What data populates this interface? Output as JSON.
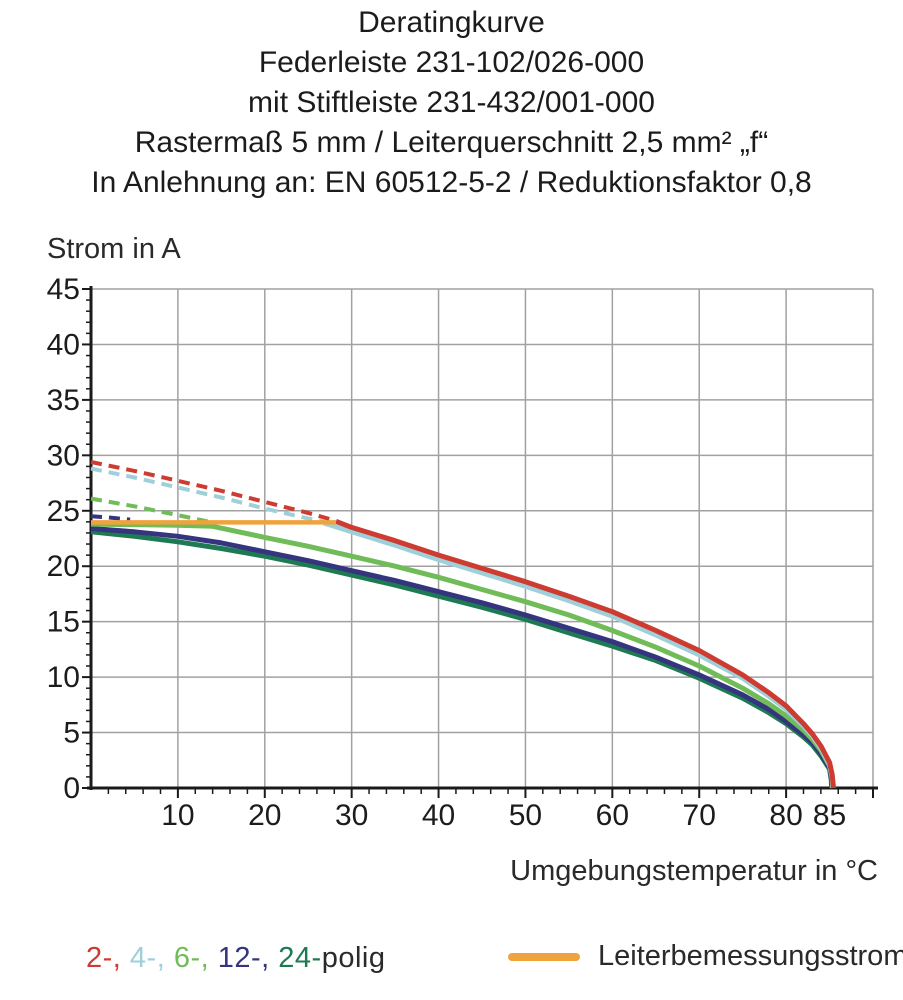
{
  "title": {
    "lines": [
      "Deratingkurve",
      "Federleiste 231-102/026-000",
      "mit Stiftleiste 231-432/001-000",
      "Rastermaß 5 mm / Leiterquerschnitt 2,5 mm² „f“",
      "In Anlehnung an: EN 60512-5-2 / Reduktionsfaktor 0,8"
    ]
  },
  "chart_data": {
    "type": "line",
    "ylabel": "Strom in A",
    "xlabel": "Umgebungstemperatur in °C",
    "x_unit": "°C",
    "y_unit": "A",
    "xlim": [
      0,
      90
    ],
    "ylim": [
      0,
      45
    ],
    "grid": true,
    "grid_color": "#a1a1a1",
    "axis_color": "#1a1a1a",
    "x_gridlines": [
      10,
      20,
      30,
      40,
      50,
      60,
      70,
      80,
      90
    ],
    "y_gridlines": [
      5,
      10,
      15,
      20,
      25,
      30,
      35,
      40,
      45
    ],
    "x_major_ticks": [
      10,
      20,
      30,
      40,
      50,
      60,
      70,
      80,
      85
    ],
    "y_major_ticks": [
      0,
      5,
      10,
      15,
      20,
      25,
      30,
      35,
      40,
      45
    ],
    "x_minor_step": 2,
    "y_minor_step": 1,
    "rated_conductor_current_A": 24,
    "series": [
      {
        "name": "2-polig",
        "color": "#ce3b30",
        "dashed_points": [
          [
            0,
            29.4
          ],
          [
            5,
            28.6
          ],
          [
            10,
            27.7
          ],
          [
            15,
            26.8
          ],
          [
            20,
            25.8
          ],
          [
            25,
            24.8
          ],
          [
            28.2,
            24.1
          ]
        ],
        "solid_points": [
          [
            28.2,
            24.05
          ],
          [
            30,
            23.5
          ],
          [
            35,
            22.3
          ],
          [
            40,
            21.0
          ],
          [
            45,
            19.8
          ],
          [
            50,
            18.6
          ],
          [
            55,
            17.3
          ],
          [
            60,
            15.9
          ],
          [
            65,
            14.2
          ],
          [
            70,
            12.4
          ],
          [
            75,
            10.2
          ],
          [
            78,
            8.6
          ],
          [
            80,
            7.4
          ],
          [
            82,
            5.8
          ],
          [
            83,
            4.9
          ],
          [
            84,
            3.8
          ],
          [
            85,
            2.3
          ],
          [
            85.3,
            1.2
          ],
          [
            85.45,
            0
          ]
        ]
      },
      {
        "name": "4-polig",
        "color": "#9fcfd8",
        "dashed_points": [
          [
            0,
            28.8
          ],
          [
            5,
            28.0
          ],
          [
            10,
            27.1
          ],
          [
            15,
            26.2
          ],
          [
            20,
            25.2
          ],
          [
            25,
            24.3
          ],
          [
            26.8,
            24.0
          ]
        ],
        "solid_points": [
          [
            26.8,
            23.9
          ],
          [
            30,
            23.1
          ],
          [
            35,
            21.9
          ],
          [
            40,
            20.6
          ],
          [
            45,
            19.4
          ],
          [
            50,
            18.2
          ],
          [
            55,
            16.9
          ],
          [
            60,
            15.5
          ],
          [
            65,
            13.8
          ],
          [
            70,
            12.0
          ],
          [
            75,
            9.9
          ],
          [
            78,
            8.3
          ],
          [
            80,
            7.1
          ],
          [
            82,
            5.6
          ],
          [
            83,
            4.7
          ],
          [
            84,
            3.6
          ],
          [
            85,
            2.1
          ],
          [
            85.3,
            1.0
          ],
          [
            85.4,
            0
          ]
        ]
      },
      {
        "name": "6-polig",
        "color": "#6fbc58",
        "dashed_points": [
          [
            0,
            26.1
          ],
          [
            5,
            25.4
          ],
          [
            10,
            24.6
          ],
          [
            14,
            23.95
          ]
        ],
        "solid_points": [
          [
            0,
            23.8
          ],
          [
            10,
            23.7
          ],
          [
            14,
            23.6
          ],
          [
            20,
            22.6
          ],
          [
            25,
            21.8
          ],
          [
            30,
            20.9
          ],
          [
            35,
            20.0
          ],
          [
            40,
            19.0
          ],
          [
            45,
            17.9
          ],
          [
            50,
            16.8
          ],
          [
            55,
            15.6
          ],
          [
            60,
            14.2
          ],
          [
            65,
            12.7
          ],
          [
            70,
            11.0
          ],
          [
            75,
            9.0
          ],
          [
            78,
            7.6
          ],
          [
            80,
            6.5
          ],
          [
            82,
            5.2
          ],
          [
            83,
            4.4
          ],
          [
            84,
            3.4
          ],
          [
            85,
            2.0
          ],
          [
            85.3,
            0.9
          ],
          [
            85.35,
            0
          ]
        ]
      },
      {
        "name": "12-polig",
        "color": "#34357e",
        "dashed_points": [
          [
            0,
            24.5
          ],
          [
            2,
            24.4
          ],
          [
            4.5,
            24.2
          ]
        ],
        "solid_points": [
          [
            0,
            23.4
          ],
          [
            5,
            23.1
          ],
          [
            10,
            22.7
          ],
          [
            15,
            22.1
          ],
          [
            20,
            21.3
          ],
          [
            25,
            20.5
          ],
          [
            30,
            19.6
          ],
          [
            35,
            18.7
          ],
          [
            40,
            17.7
          ],
          [
            45,
            16.7
          ],
          [
            50,
            15.6
          ],
          [
            55,
            14.4
          ],
          [
            60,
            13.2
          ],
          [
            65,
            11.8
          ],
          [
            70,
            10.2
          ],
          [
            75,
            8.4
          ],
          [
            78,
            7.1
          ],
          [
            80,
            6.0
          ],
          [
            82,
            4.8
          ],
          [
            83,
            4.1
          ],
          [
            84,
            3.1
          ],
          [
            85,
            1.8
          ],
          [
            85.25,
            0.8
          ],
          [
            85.3,
            0
          ]
        ]
      },
      {
        "name": "24-polig",
        "color": "#1e7a52",
        "solid_points": [
          [
            0,
            23.1
          ],
          [
            5,
            22.7
          ],
          [
            10,
            22.2
          ],
          [
            15,
            21.6
          ],
          [
            20,
            20.9
          ],
          [
            25,
            20.1
          ],
          [
            30,
            19.2
          ],
          [
            35,
            18.3
          ],
          [
            40,
            17.3
          ],
          [
            45,
            16.3
          ],
          [
            50,
            15.2
          ],
          [
            55,
            14.0
          ],
          [
            60,
            12.8
          ],
          [
            65,
            11.5
          ],
          [
            70,
            9.9
          ],
          [
            75,
            8.1
          ],
          [
            78,
            6.8
          ],
          [
            80,
            5.8
          ],
          [
            82,
            4.6
          ],
          [
            83,
            3.9
          ],
          [
            84,
            2.9
          ],
          [
            85,
            1.7
          ],
          [
            85.2,
            0.7
          ],
          [
            85.25,
            0
          ]
        ]
      },
      {
        "name": "Leiterbemessungsstrom",
        "role": "rated-current",
        "color": "#efa33d",
        "solid_points": [
          [
            0,
            23.95
          ],
          [
            28.2,
            23.95
          ]
        ]
      }
    ]
  },
  "legend": {
    "pole_series": [
      {
        "label": "2-,",
        "color": "#ce3b30"
      },
      {
        "label": "4-,",
        "color": "#9fcfd8"
      },
      {
        "label": "6-,",
        "color": "#6fbc58"
      },
      {
        "label": "12-,",
        "color": "#34357e"
      },
      {
        "label": "24-",
        "color": "#1e7a52"
      }
    ],
    "suffix": "polig",
    "suffix_color": "#2a2a2a",
    "rated_current_label": "Leiterbemessungsstrom",
    "rated_current_color": "#efa33d"
  }
}
